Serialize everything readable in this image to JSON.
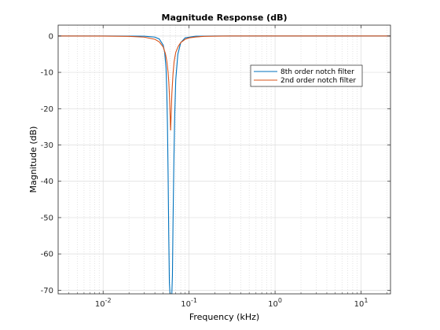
{
  "chart_data": {
    "type": "line",
    "title": "Magnitude Response (dB)",
    "xlabel": "Frequency (kHz)",
    "ylabel": "Magnitude (dB)",
    "xscale": "log",
    "xlim": [
      0.003,
      22
    ],
    "ylim": [
      -71,
      3
    ],
    "xticks": [
      {
        "value": 0.01,
        "base": "10",
        "exp": "-2"
      },
      {
        "value": 0.1,
        "base": "10",
        "exp": "-1"
      },
      {
        "value": 1,
        "base": "10",
        "exp": "0"
      },
      {
        "value": 10,
        "base": "10",
        "exp": "1"
      }
    ],
    "yticks": [
      0,
      -10,
      -20,
      -30,
      -40,
      -50,
      -60,
      -70
    ],
    "grid": true,
    "legend_position": "upper-right",
    "series": [
      {
        "name": "8th order notch filter",
        "color": "#0072BD",
        "x": [
          0.003,
          0.012,
          0.03,
          0.04,
          0.045,
          0.05,
          0.052,
          0.054,
          0.055,
          0.056,
          0.057,
          0.058,
          0.059,
          0.06,
          0.0615,
          0.063,
          0.064,
          0.065,
          0.0665,
          0.068,
          0.07,
          0.074,
          0.08,
          0.09,
          0.12,
          0.2,
          0.3,
          1,
          22
        ],
        "values": [
          0,
          0,
          -0.05,
          -0.3,
          -0.8,
          -2.5,
          -4.5,
          -9,
          -15,
          -24,
          -38,
          -55,
          -68,
          -71,
          -71,
          -71,
          -66,
          -52,
          -35,
          -22,
          -12,
          -5,
          -1.8,
          -0.5,
          -0.05,
          0,
          0,
          0,
          0
        ]
      },
      {
        "name": "2nd order notch filter",
        "color": "#D95319",
        "x": [
          0.003,
          0.01,
          0.02,
          0.03,
          0.04,
          0.045,
          0.05,
          0.053,
          0.055,
          0.057,
          0.058,
          0.059,
          0.06,
          0.061,
          0.062,
          0.063,
          0.065,
          0.067,
          0.07,
          0.075,
          0.08,
          0.09,
          0.1,
          0.12,
          0.15,
          0.2,
          0.3,
          1,
          22
        ],
        "values": [
          0,
          -0.02,
          -0.1,
          -0.3,
          -0.9,
          -1.6,
          -3,
          -4.8,
          -6.8,
          -10,
          -12.5,
          -16,
          -21,
          -26,
          -21,
          -16,
          -10.5,
          -7,
          -4.5,
          -2.8,
          -1.8,
          -0.9,
          -0.5,
          -0.25,
          -0.1,
          -0.05,
          0,
          0,
          0
        ]
      }
    ]
  }
}
